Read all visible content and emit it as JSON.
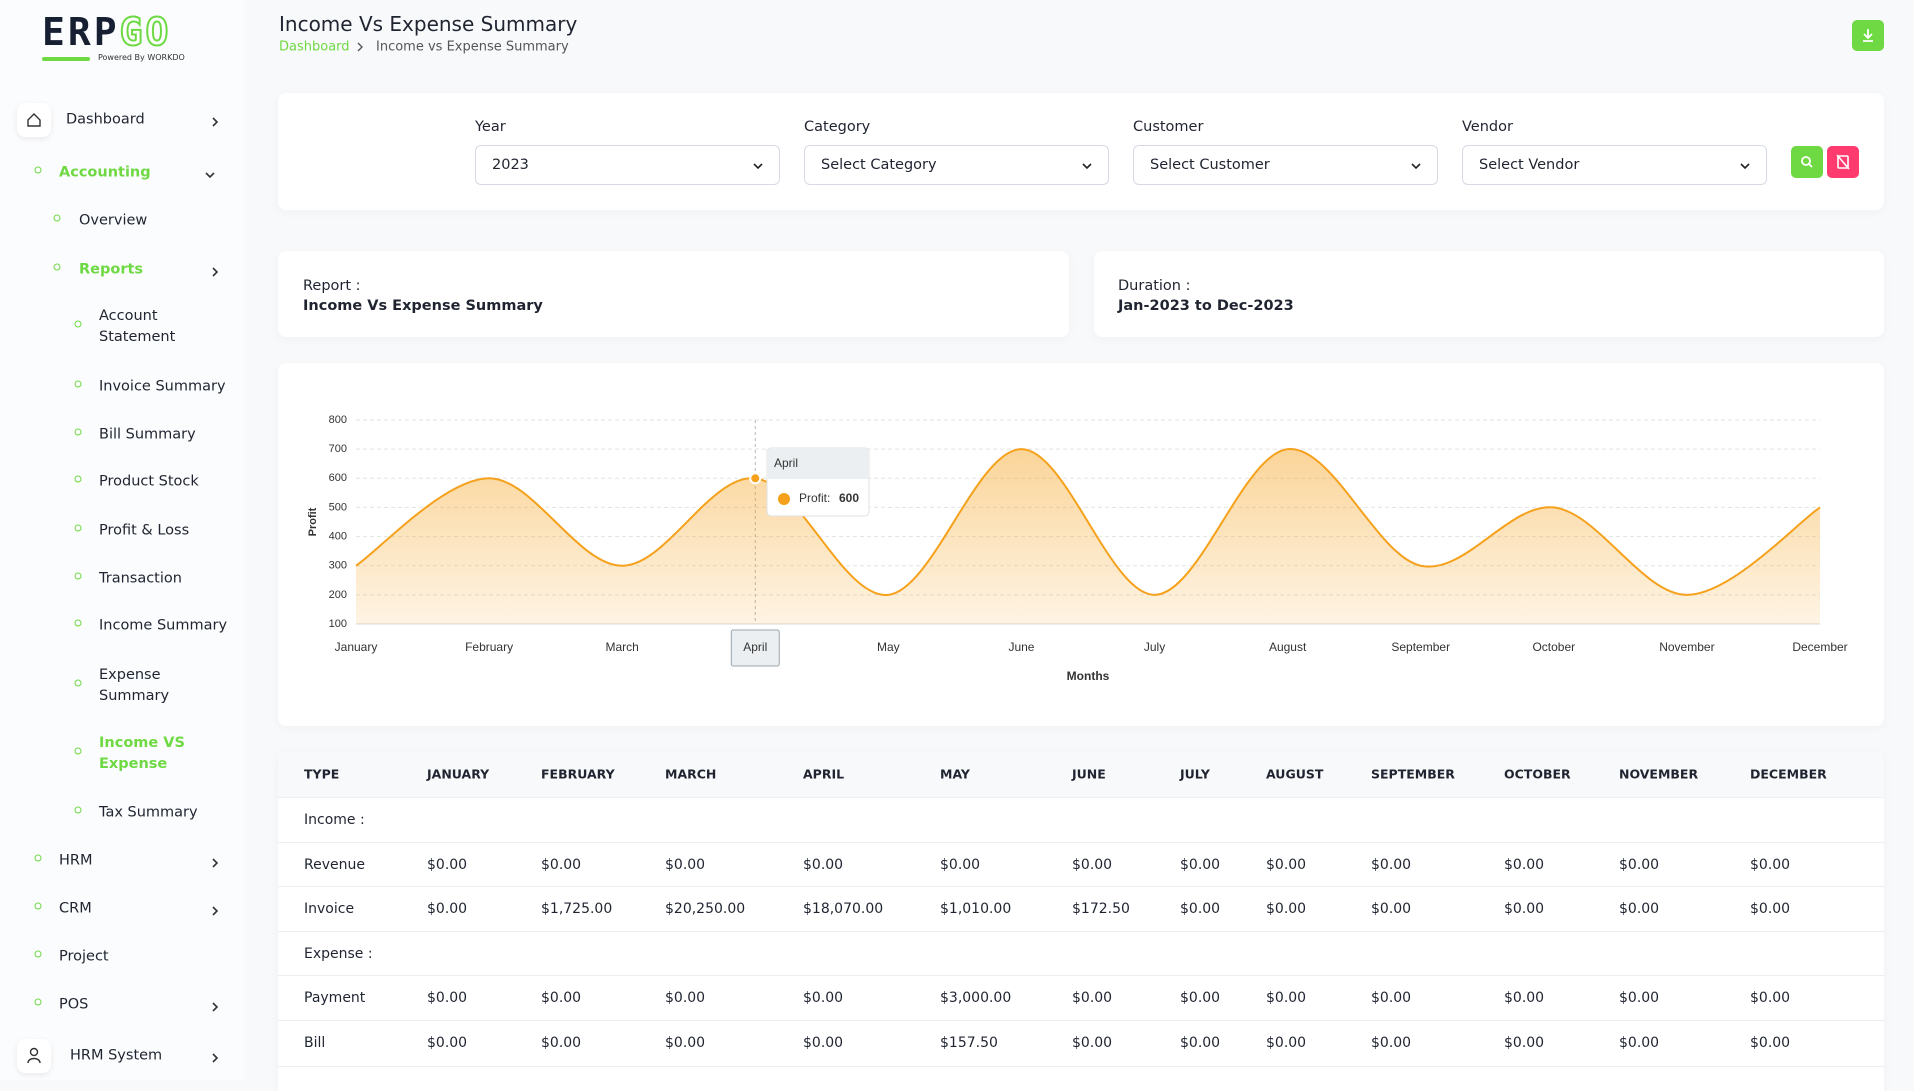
{
  "logo": {
    "parts": [
      "ERP",
      "GO"
    ],
    "tagline": "Powered By WORKDO"
  },
  "sidebar": [
    "Dashboard",
    "Accounting",
    "Overview",
    "Reports",
    "Account Statement",
    "Invoice Summary",
    "Bill Summary",
    "Product Stock",
    "Profit & Loss",
    "Transaction",
    "Income Summary",
    "Expense Summary",
    "Income VS Expense",
    "Tax Summary",
    "HRM",
    "CRM",
    "Project",
    "POS",
    "HRM System"
  ],
  "header": {
    "title": "Income Vs Expense Summary",
    "breadcrumb": [
      "Dashboard",
      "Income vs Expense Summary"
    ]
  },
  "filters": [
    {
      "label": "Year",
      "value": "2023"
    },
    {
      "label": "Category",
      "value": "Select Category"
    },
    {
      "label": "Customer",
      "value": "Select Customer"
    },
    {
      "label": "Vendor",
      "value": "Select Vendor"
    }
  ],
  "report": {
    "label": "Report :",
    "value": "Income Vs Expense Summary"
  },
  "duration": {
    "label": "Duration :",
    "value": "Jan-2023 to Dec-2023"
  },
  "chart_data": {
    "type": "area",
    "x_label": "Months",
    "y_label": "Profit",
    "categories": [
      "January",
      "February",
      "March",
      "April",
      "May",
      "June",
      "July",
      "August",
      "September",
      "October",
      "November",
      "December"
    ],
    "values": [
      300,
      600,
      300,
      600,
      200,
      700,
      200,
      700,
      300,
      500,
      200,
      500
    ],
    "color": "#f5a11c",
    "ylim": [
      100,
      800
    ],
    "yticks": [
      100,
      200,
      300,
      400,
      500,
      600,
      700,
      800
    ],
    "grid": true,
    "tooltip_label": "Profit:",
    "highlight": 3
  },
  "table": {
    "header": [
      "TYPE",
      "JANUARY",
      "FEBRUARY",
      "MARCH",
      "APRIL",
      "MAY",
      "JUNE",
      "JULY",
      "AUGUST",
      "SEPTEMBER",
      "OCTOBER",
      "NOVEMBER",
      "DECEMBER"
    ],
    "rows": [
      [
        "Income :"
      ],
      [
        "Revenue",
        "$0.00",
        "$0.00",
        "$0.00",
        "$0.00",
        "$0.00",
        "$0.00",
        "$0.00",
        "$0.00",
        "$0.00",
        "$0.00",
        "$0.00",
        "$0.00"
      ],
      [
        "Invoice",
        "$0.00",
        "$1,725.00",
        "$20,250.00",
        "$18,070.00",
        "$1,010.00",
        "$172.50",
        "$0.00",
        "$0.00",
        "$0.00",
        "$0.00",
        "$0.00",
        "$0.00"
      ],
      [
        "Expense :"
      ],
      [
        "Payment",
        "$0.00",
        "$0.00",
        "$0.00",
        "$0.00",
        "$3,000.00",
        "$0.00",
        "$0.00",
        "$0.00",
        "$0.00",
        "$0.00",
        "$0.00",
        "$0.00"
      ],
      [
        "Bill",
        "$0.00",
        "$0.00",
        "$0.00",
        "$0.00",
        "$157.50",
        "$0.00",
        "$0.00",
        "$0.00",
        "$0.00",
        "$0.00",
        "$0.00",
        "$0.00"
      ]
    ]
  }
}
